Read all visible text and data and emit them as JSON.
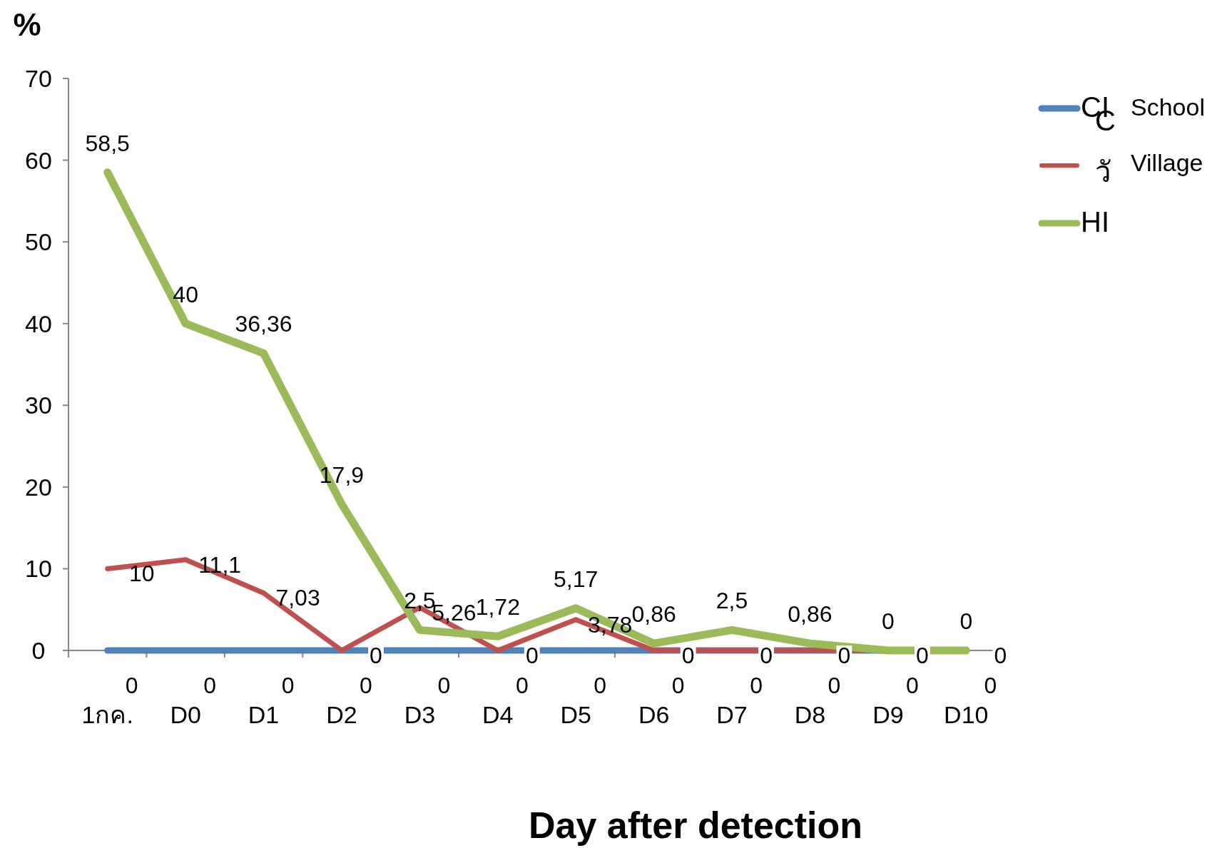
{
  "chart_data": {
    "type": "line",
    "xlabel": "Day after detection",
    "ylabel": "%",
    "categories": [
      "1กค.",
      "D0",
      "D1",
      "D2",
      "D3",
      "D4",
      "D5",
      "D6",
      "D7",
      "D8",
      "D9",
      "D10"
    ],
    "series": [
      {
        "name": "CI",
        "color": "#4f81bd",
        "values": [
          0,
          0,
          0,
          0,
          0,
          0,
          0,
          0,
          0,
          0,
          0,
          0
        ],
        "value_labels": [
          "0",
          "0",
          "0",
          "0",
          "0",
          "0",
          "0",
          "0",
          "0",
          "0",
          "0",
          "0"
        ]
      },
      {
        "name": "C วั",
        "color": "#c0504d",
        "values": [
          10,
          11.1,
          7.03,
          0,
          5.26,
          0,
          3.78,
          0,
          0,
          0,
          0,
          0
        ],
        "value_labels": [
          "10",
          "11,1",
          "7,03",
          "0",
          "5,26",
          "0",
          "3,78",
          "0",
          "0",
          "0",
          "0",
          "0"
        ]
      },
      {
        "name": "HI",
        "color": "#9bbb59",
        "values": [
          58.5,
          40,
          36.36,
          17.9,
          2.5,
          1.72,
          5.17,
          0.86,
          2.5,
          0.86,
          0,
          0
        ],
        "value_labels": [
          "58,5",
          "40",
          "36,36",
          "17,9",
          "2,5",
          "1,72",
          "5,17",
          "0,86",
          "2,5",
          "0,86",
          "0",
          "0"
        ]
      }
    ],
    "annotations": [
      "School",
      "Village"
    ],
    "ylim": [
      0,
      70
    ],
    "yticks": [
      0,
      10,
      20,
      30,
      40,
      50,
      60,
      70
    ],
    "grid": false,
    "legend": "top right",
    "marker": "none",
    "line_style": "solid"
  }
}
